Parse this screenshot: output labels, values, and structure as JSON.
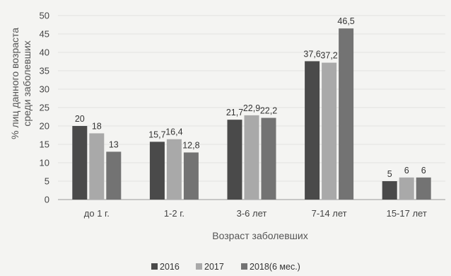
{
  "chart_data": {
    "type": "bar",
    "title": "",
    "xlabel": "Возраст заболевших",
    "ylabel": "% лиц данного возраста среди заболевших",
    "ylabel_lines": [
      "% лиц данного возраста",
      "среди заболевших"
    ],
    "ylim": [
      0,
      50
    ],
    "yticks": [
      0,
      5,
      10,
      15,
      20,
      25,
      30,
      35,
      40,
      45,
      50
    ],
    "grid": true,
    "legend_position": "bottom",
    "categories": [
      "до 1 г.",
      "1-2 г.",
      "3-6 лет",
      "7-14 лет",
      "15-17 лет"
    ],
    "series": [
      {
        "name": "2016",
        "color": "#4a4a4a",
        "values": [
          20,
          15.7,
          21.7,
          37.6,
          5
        ],
        "labels": [
          "20",
          "15,7",
          "21,7",
          "37,6",
          "5"
        ]
      },
      {
        "name": "2017",
        "color": "#a9a9a9",
        "values": [
          18,
          16.4,
          22.9,
          37.2,
          6
        ],
        "labels": [
          "18",
          "16,4",
          "22,9",
          "37,2",
          "6"
        ]
      },
      {
        "name": "2018(6 мес.)",
        "color": "#737373",
        "values": [
          13,
          12.8,
          22.2,
          46.5,
          6
        ],
        "labels": [
          "13",
          "12,8",
          "22,2",
          "46,5",
          "6"
        ]
      }
    ]
  }
}
